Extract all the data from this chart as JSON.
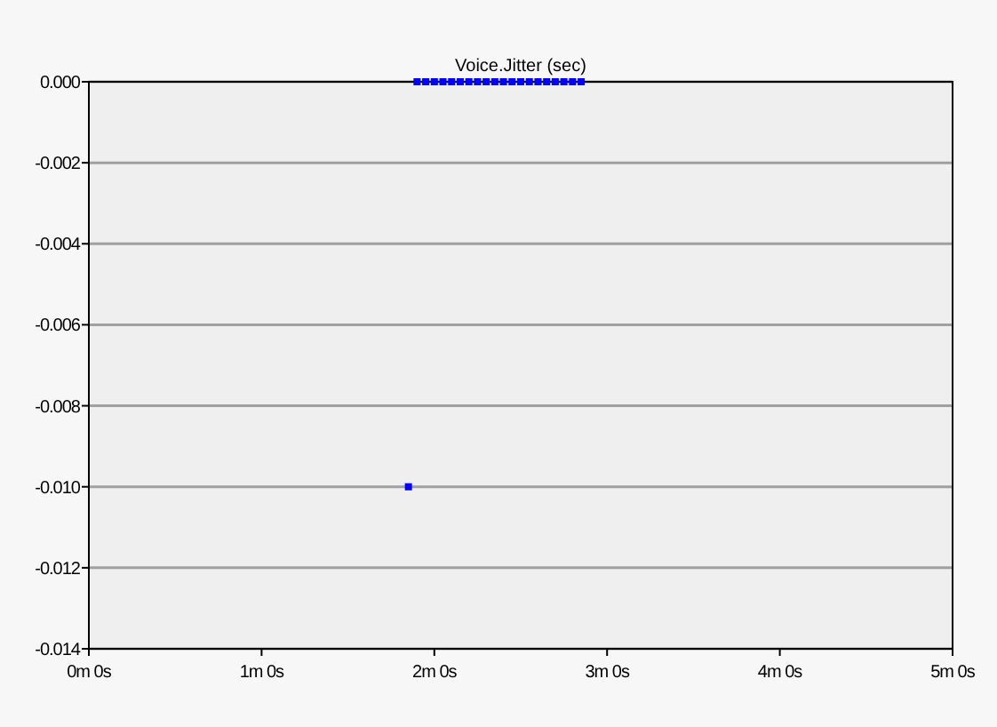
{
  "chart_data": {
    "type": "scatter",
    "title": "Voice.Jitter (sec)",
    "categories": [
      "0m 0s",
      null,
      null,
      null,
      null,
      null,
      null,
      null,
      null,
      null,
      null,
      null,
      null,
      null,
      null,
      null,
      null,
      null,
      null,
      null,
      "1m 0s",
      null,
      null,
      null,
      null,
      null,
      null,
      null,
      null,
      null,
      null,
      null,
      null,
      null,
      null,
      null,
      null,
      null,
      null,
      null,
      "2m 0s",
      null,
      null,
      null,
      null,
      null,
      null,
      null,
      null,
      null,
      null,
      null,
      null,
      null,
      null,
      null,
      null,
      null,
      null,
      null,
      "3m 0s",
      null,
      null,
      null,
      null,
      null,
      null,
      null,
      null,
      null,
      null,
      null,
      null,
      null,
      null,
      null,
      null,
      null,
      null,
      null,
      "4m 0s",
      null,
      null,
      null,
      null,
      null,
      null,
      null,
      null,
      null,
      null,
      null,
      null,
      null,
      null,
      null,
      null,
      null,
      null,
      null,
      "5m 0s"
    ],
    "series": [
      {
        "color": "#0000ff",
        "values": [
          null,
          null,
          null,
          null,
          null,
          null,
          null,
          null,
          null,
          null,
          null,
          null,
          null,
          null,
          null,
          null,
          null,
          null,
          null,
          null,
          null,
          null,
          null,
          null,
          null,
          null,
          null,
          null,
          null,
          null,
          null,
          null,
          null,
          null,
          null,
          null,
          null,
          -0.01,
          0,
          0,
          0,
          0,
          0,
          0,
          0,
          0,
          0,
          0,
          0,
          0,
          0,
          0,
          0,
          0,
          0,
          0,
          0,
          0,
          null,
          null,
          null,
          null,
          null,
          null,
          null,
          null,
          null,
          null,
          null,
          null,
          null,
          null,
          null,
          null,
          null,
          null,
          null,
          null,
          null,
          null,
          null,
          null,
          null,
          null,
          null,
          null,
          null,
          null,
          null,
          null,
          null,
          null,
          null,
          null,
          null,
          null,
          null,
          null,
          null,
          null,
          null
        ]
      }
    ],
    "ylim": [
      -0.014,
      0
    ],
    "yticks": [
      {
        "value": 0,
        "label": "0.000"
      },
      {
        "value": -0.002,
        "label": "-0.002"
      },
      {
        "value": -0.004,
        "label": "-0.004"
      },
      {
        "value": -0.006,
        "label": "-0.006"
      },
      {
        "value": -0.008,
        "label": "-0.008"
      },
      {
        "value": -0.01,
        "label": "-0.010"
      },
      {
        "value": -0.012,
        "label": "-0.012"
      },
      {
        "value": -0.014,
        "label": "-0.014"
      }
    ],
    "grid": "y",
    "marker": "square"
  }
}
